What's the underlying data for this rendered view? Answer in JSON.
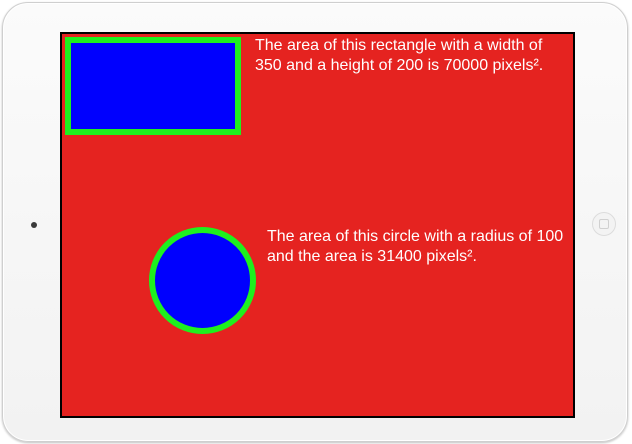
{
  "device": {
    "model": "iPad frame"
  },
  "canvas": {
    "background_color": "#e52320",
    "rectangle": {
      "fill_color": "#0000fe",
      "stroke_color": "#1ef01e",
      "caption": "The area of this rectangle with a width of 350 and a height of 200 is 70000 pixels²."
    },
    "circle": {
      "fill_color": "#0000fe",
      "stroke_color": "#1ef01e",
      "caption": "The area of this circle with a radius of 100 and the area is 31400 pixels²."
    }
  }
}
